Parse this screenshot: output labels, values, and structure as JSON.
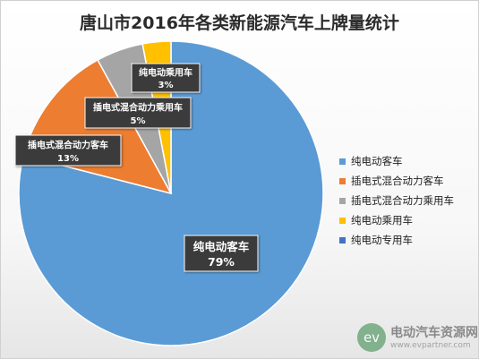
{
  "chart_data": {
    "type": "pie",
    "title": "唐山市2016年各类新能源汽车上牌量统计",
    "categories": [
      "纯电动客车",
      "插电式混合动力客车",
      "插电式混合动力乘用车",
      "纯电动乘用车",
      "纯电动专用车"
    ],
    "values": [
      79,
      13,
      5,
      3,
      0
    ],
    "unit": "%",
    "data_labels": [
      {
        "name": "纯电动客车",
        "value": "79%"
      },
      {
        "name": "插电式混合动力客车",
        "value": "13%"
      },
      {
        "name": "插电式混合动力乘用车",
        "value": "5%"
      },
      {
        "name": "纯电动乘用车",
        "value": "3%"
      }
    ],
    "colors": [
      "#5b9bd5",
      "#ed7d31",
      "#a5a5a5",
      "#ffc000",
      "#4472c4"
    ],
    "legend_position": "right"
  },
  "watermark": {
    "logo_text": "ev",
    "name": "电动汽车资源网",
    "url": "www.evpartner.com"
  }
}
